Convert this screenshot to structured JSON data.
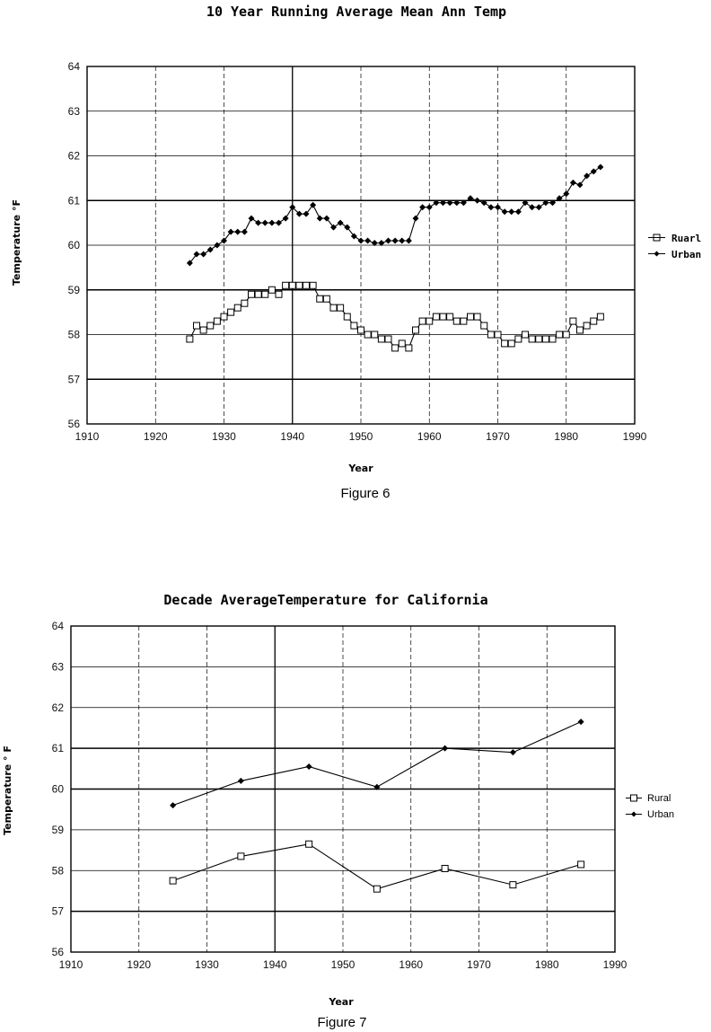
{
  "chart_data": [
    {
      "type": "line",
      "title": "10 Year Running Average Mean Ann Temp",
      "xlabel": "Year",
      "ylabel": "Temperature °F",
      "caption": "Figure 6",
      "xlim": [
        1910,
        1990
      ],
      "ylim": [
        56,
        64
      ],
      "xticks": [
        "1910",
        "1920",
        "1930",
        "1940",
        "1950",
        "1960",
        "1970",
        "1980",
        "1990"
      ],
      "yticks": [
        "56",
        "57",
        "58",
        "59",
        "60",
        "61",
        "62",
        "63",
        "64"
      ],
      "legend": [
        "Ruarl",
        "Urban"
      ],
      "grid": true,
      "series": [
        {
          "name": "Ruarl",
          "marker": "square",
          "x": [
            1925,
            1926,
            1927,
            1928,
            1929,
            1930,
            1931,
            1932,
            1933,
            1934,
            1935,
            1936,
            1937,
            1938,
            1939,
            1940,
            1941,
            1942,
            1943,
            1944,
            1945,
            1946,
            1947,
            1948,
            1949,
            1950,
            1951,
            1952,
            1953,
            1954,
            1955,
            1956,
            1957,
            1958,
            1959,
            1960,
            1961,
            1962,
            1963,
            1964,
            1965,
            1966,
            1967,
            1968,
            1969,
            1970,
            1971,
            1972,
            1973,
            1974,
            1975,
            1976,
            1977,
            1978,
            1979,
            1980,
            1981,
            1982,
            1983,
            1984,
            1985
          ],
          "values": [
            57.9,
            58.2,
            58.1,
            58.2,
            58.3,
            58.4,
            58.5,
            58.6,
            58.7,
            58.9,
            58.9,
            58.9,
            59.0,
            58.9,
            59.1,
            59.1,
            59.1,
            59.1,
            59.1,
            58.8,
            58.8,
            58.6,
            58.6,
            58.4,
            58.2,
            58.1,
            58.0,
            58.0,
            57.9,
            57.9,
            57.7,
            57.8,
            57.7,
            58.1,
            58.3,
            58.3,
            58.4,
            58.4,
            58.4,
            58.3,
            58.3,
            58.4,
            58.4,
            58.2,
            58.0,
            58.0,
            57.8,
            57.8,
            57.9,
            58.0,
            57.9,
            57.9,
            57.9,
            57.9,
            58.0,
            58.0,
            58.3,
            58.1,
            58.2,
            58.3,
            58.4
          ]
        },
        {
          "name": "Urban",
          "marker": "diamond",
          "x": [
            1925,
            1926,
            1927,
            1928,
            1929,
            1930,
            1931,
            1932,
            1933,
            1934,
            1935,
            1936,
            1937,
            1938,
            1939,
            1940,
            1941,
            1942,
            1943,
            1944,
            1945,
            1946,
            1947,
            1948,
            1949,
            1950,
            1951,
            1952,
            1953,
            1954,
            1955,
            1956,
            1957,
            1958,
            1959,
            1960,
            1961,
            1962,
            1963,
            1964,
            1965,
            1966,
            1967,
            1968,
            1969,
            1970,
            1971,
            1972,
            1973,
            1974,
            1975,
            1976,
            1977,
            1978,
            1979,
            1980,
            1981,
            1982,
            1983,
            1984,
            1985
          ],
          "values": [
            59.6,
            59.8,
            59.8,
            59.9,
            60.0,
            60.1,
            60.3,
            60.3,
            60.3,
            60.6,
            60.5,
            60.5,
            60.5,
            60.5,
            60.6,
            60.85,
            60.7,
            60.7,
            60.9,
            60.6,
            60.6,
            60.4,
            60.5,
            60.4,
            60.2,
            60.1,
            60.1,
            60.05,
            60.05,
            60.1,
            60.1,
            60.1,
            60.1,
            60.6,
            60.85,
            60.85,
            60.95,
            60.95,
            60.95,
            60.95,
            60.95,
            61.05,
            61.0,
            60.95,
            60.85,
            60.85,
            60.75,
            60.75,
            60.75,
            60.95,
            60.85,
            60.85,
            60.95,
            60.95,
            61.05,
            61.15,
            61.4,
            61.35,
            61.55,
            61.65,
            61.75
          ]
        }
      ]
    },
    {
      "type": "line",
      "title": "Decade AverageTemperature for California",
      "xlabel": "Year",
      "ylabel": "Temperature ° F",
      "caption": "Figure 7",
      "xlim": [
        1910,
        1990
      ],
      "ylim": [
        56,
        64
      ],
      "xticks": [
        "1910",
        "1920",
        "1930",
        "1940",
        "1950",
        "1960",
        "1970",
        "1980",
        "1990"
      ],
      "yticks": [
        "56",
        "57",
        "58",
        "59",
        "60",
        "61",
        "62",
        "63",
        "64"
      ],
      "legend": [
        "Rural",
        "Urban"
      ],
      "grid": true,
      "series": [
        {
          "name": "Rural",
          "marker": "square",
          "x": [
            1925,
            1935,
            1945,
            1955,
            1965,
            1975,
            1985
          ],
          "values": [
            57.75,
            58.35,
            58.65,
            57.55,
            58.05,
            57.65,
            58.15
          ]
        },
        {
          "name": "Urban",
          "marker": "diamond",
          "x": [
            1925,
            1935,
            1945,
            1955,
            1965,
            1975,
            1985
          ],
          "values": [
            59.6,
            60.2,
            60.55,
            60.05,
            61.0,
            60.9,
            61.65
          ]
        }
      ]
    }
  ]
}
